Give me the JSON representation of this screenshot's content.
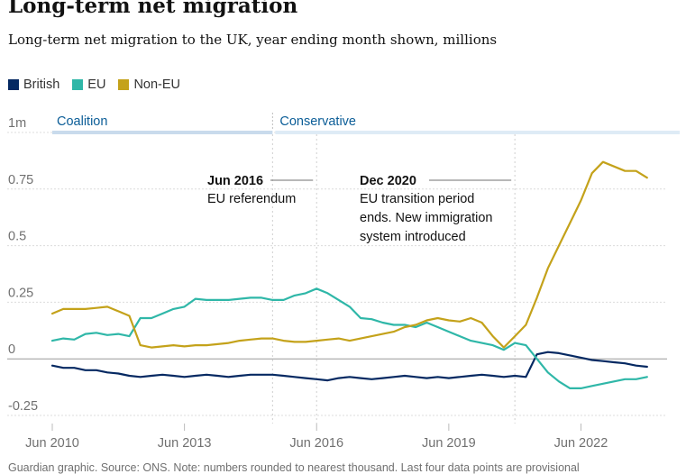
{
  "header": {
    "title": "Long-term net migration",
    "subtitle": "Long-term net migration to the UK, year ending month shown, millions"
  },
  "legend": [
    {
      "label": "British",
      "color": "#052962"
    },
    {
      "label": "EU",
      "color": "#2fb7a8"
    },
    {
      "label": "Non-EU",
      "color": "#c4a21a"
    }
  ],
  "footer": {
    "source": "Guardian graphic. Source: ONS. Note: numbers rounded to nearest thousand. Last four data points are provisional"
  },
  "chart_data": {
    "type": "line",
    "ylim": [
      -0.25,
      1
    ],
    "xlim": [
      2010.0,
      2023.75
    ],
    "y_ticks": [
      {
        "value": 1,
        "label": "1m"
      },
      {
        "value": 0.75,
        "label": "0.75"
      },
      {
        "value": 0.5,
        "label": "0.5"
      },
      {
        "value": 0.25,
        "label": "0.25"
      },
      {
        "value": 0,
        "label": "0"
      },
      {
        "value": -0.25,
        "label": "-0.25"
      }
    ],
    "x_ticks": [
      {
        "value": 2010.0,
        "label": "Jun 2010"
      },
      {
        "value": 2013.0,
        "label": "Jun 2013"
      },
      {
        "value": 2016.0,
        "label": "Jun 2016"
      },
      {
        "value": 2019.0,
        "label": "Jun 2019"
      },
      {
        "value": 2022.0,
        "label": "Jun 2022"
      }
    ],
    "periods": [
      {
        "label": "Coalition",
        "start": 2010.0,
        "end": 2015.0
      },
      {
        "label": "Conservative",
        "start": 2015.0,
        "end": 2023.75
      }
    ],
    "annotations": [
      {
        "x": 2016.0,
        "y": 0.8,
        "title": "Jun 2016",
        "lines": [
          "EU referendum"
        ],
        "side": "left"
      },
      {
        "x": 2020.5,
        "y": 0.8,
        "title": "Dec 2020",
        "lines": [
          "EU transition period",
          "ends. New immigration",
          "system introduced"
        ],
        "side": "left"
      }
    ],
    "series": [
      {
        "name": "British",
        "color": "#052962",
        "x": [
          2010.0,
          2010.25,
          2010.5,
          2010.75,
          2011.0,
          2011.25,
          2011.5,
          2011.75,
          2012.0,
          2012.25,
          2012.5,
          2012.75,
          2013.0,
          2013.25,
          2013.5,
          2013.75,
          2014.0,
          2014.25,
          2014.5,
          2014.75,
          2015.0,
          2015.25,
          2015.5,
          2015.75,
          2016.0,
          2016.25,
          2016.5,
          2016.75,
          2017.0,
          2017.25,
          2017.5,
          2017.75,
          2018.0,
          2018.25,
          2018.5,
          2018.75,
          2019.0,
          2019.25,
          2019.5,
          2019.75,
          2020.0,
          2020.25,
          2020.5,
          2020.75,
          2021.0,
          2021.25,
          2021.5,
          2021.75,
          2022.0,
          2022.25,
          2022.5,
          2022.75,
          2023.0,
          2023.25,
          2023.5
        ],
        "values": [
          -0.03,
          -0.04,
          -0.04,
          -0.05,
          -0.05,
          -0.06,
          -0.065,
          -0.075,
          -0.08,
          -0.075,
          -0.07,
          -0.075,
          -0.08,
          -0.075,
          -0.07,
          -0.075,
          -0.08,
          -0.075,
          -0.07,
          -0.07,
          -0.07,
          -0.075,
          -0.08,
          -0.085,
          -0.09,
          -0.095,
          -0.085,
          -0.08,
          -0.085,
          -0.09,
          -0.085,
          -0.08,
          -0.075,
          -0.08,
          -0.085,
          -0.08,
          -0.085,
          -0.08,
          -0.075,
          -0.07,
          -0.075,
          -0.08,
          -0.075,
          -0.08,
          0.02,
          0.03,
          0.025,
          0.015,
          0.005,
          -0.005,
          -0.01,
          -0.015,
          -0.02,
          -0.03,
          -0.035
        ]
      },
      {
        "name": "EU",
        "color": "#2fb7a8",
        "x": [
          2010.0,
          2010.25,
          2010.5,
          2010.75,
          2011.0,
          2011.25,
          2011.5,
          2011.75,
          2012.0,
          2012.25,
          2012.5,
          2012.75,
          2013.0,
          2013.25,
          2013.5,
          2013.75,
          2014.0,
          2014.25,
          2014.5,
          2014.75,
          2015.0,
          2015.25,
          2015.5,
          2015.75,
          2016.0,
          2016.25,
          2016.5,
          2016.75,
          2017.0,
          2017.25,
          2017.5,
          2017.75,
          2018.0,
          2018.25,
          2018.5,
          2018.75,
          2019.0,
          2019.25,
          2019.5,
          2019.75,
          2020.0,
          2020.25,
          2020.5,
          2020.75,
          2021.0,
          2021.25,
          2021.5,
          2021.75,
          2022.0,
          2022.25,
          2022.5,
          2022.75,
          2023.0,
          2023.25,
          2023.5
        ],
        "values": [
          0.08,
          0.09,
          0.085,
          0.11,
          0.115,
          0.105,
          0.11,
          0.1,
          0.18,
          0.18,
          0.2,
          0.22,
          0.23,
          0.265,
          0.26,
          0.26,
          0.26,
          0.265,
          0.27,
          0.27,
          0.26,
          0.26,
          0.28,
          0.29,
          0.31,
          0.29,
          0.26,
          0.23,
          0.18,
          0.175,
          0.16,
          0.15,
          0.15,
          0.14,
          0.16,
          0.14,
          0.12,
          0.1,
          0.08,
          0.07,
          0.06,
          0.04,
          0.07,
          0.06,
          0.0,
          -0.06,
          -0.1,
          -0.13,
          -0.13,
          -0.12,
          -0.11,
          -0.1,
          -0.09,
          -0.09,
          -0.08
        ]
      },
      {
        "name": "Non-EU",
        "color": "#c4a21a",
        "x": [
          2010.0,
          2010.25,
          2010.5,
          2010.75,
          2011.0,
          2011.25,
          2011.5,
          2011.75,
          2012.0,
          2012.25,
          2012.5,
          2012.75,
          2013.0,
          2013.25,
          2013.5,
          2013.75,
          2014.0,
          2014.25,
          2014.5,
          2014.75,
          2015.0,
          2015.25,
          2015.5,
          2015.75,
          2016.0,
          2016.25,
          2016.5,
          2016.75,
          2017.0,
          2017.25,
          2017.5,
          2017.75,
          2018.0,
          2018.25,
          2018.5,
          2018.75,
          2019.0,
          2019.25,
          2019.5,
          2019.75,
          2020.0,
          2020.25,
          2020.5,
          2020.75,
          2021.0,
          2021.25,
          2021.5,
          2021.75,
          2022.0,
          2022.25,
          2022.5,
          2022.75,
          2023.0,
          2023.25,
          2023.5
        ],
        "values": [
          0.2,
          0.22,
          0.22,
          0.22,
          0.225,
          0.23,
          0.21,
          0.19,
          0.06,
          0.05,
          0.055,
          0.06,
          0.055,
          0.06,
          0.06,
          0.065,
          0.07,
          0.08,
          0.085,
          0.09,
          0.09,
          0.08,
          0.075,
          0.075,
          0.08,
          0.085,
          0.09,
          0.08,
          0.09,
          0.1,
          0.11,
          0.12,
          0.14,
          0.15,
          0.17,
          0.18,
          0.17,
          0.165,
          0.18,
          0.16,
          0.1,
          0.05,
          0.1,
          0.15,
          0.27,
          0.4,
          0.5,
          0.6,
          0.7,
          0.82,
          0.87,
          0.85,
          0.83,
          0.83,
          0.8
        ]
      }
    ]
  }
}
